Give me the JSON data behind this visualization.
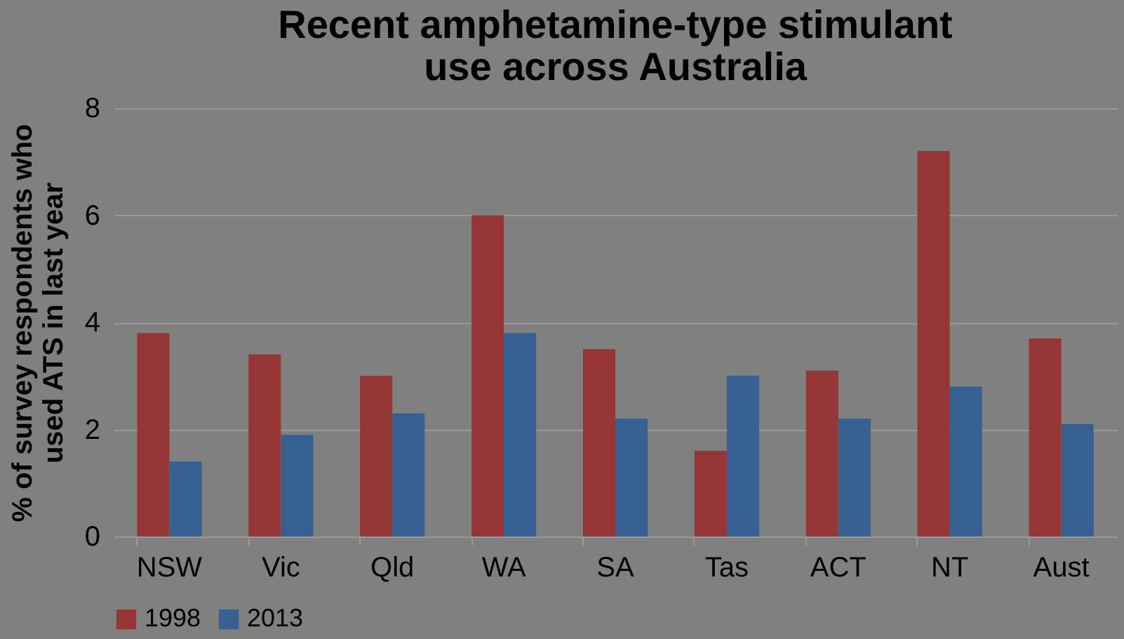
{
  "chart_data": {
    "type": "bar",
    "title": [
      "Recent amphetamine-type stimulant",
      "use across Australia"
    ],
    "ylabel": [
      "% of survey respondents who",
      "used ATS in last year"
    ],
    "categories": [
      "NSW",
      "Vic",
      "Qld",
      "WA",
      "SA",
      "Tas",
      "ACT",
      "NT",
      "Aust"
    ],
    "series": [
      {
        "name": "1998",
        "color": "#963634",
        "values": [
          3.8,
          3.4,
          3.0,
          6.0,
          3.5,
          1.6,
          3.1,
          7.2,
          3.7
        ]
      },
      {
        "name": "2013",
        "color": "#366092",
        "values": [
          1.4,
          1.9,
          2.3,
          3.8,
          2.2,
          3.0,
          2.2,
          2.8,
          2.1
        ]
      }
    ],
    "ylim": [
      0,
      8
    ],
    "yticks": [
      0,
      2,
      4,
      6,
      8
    ],
    "grid": "y",
    "legend": "bottom"
  }
}
